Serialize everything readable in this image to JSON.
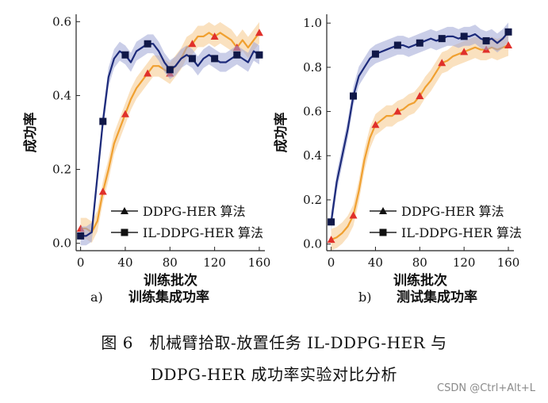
{
  "caption": {
    "line1": "图 6　机械臂拾取-放置任务 IL-DDPG-HER 与",
    "line2": "DDPG-HER 成功率实验对比分析"
  },
  "watermark": "CSDN @Ctrl+Alt+L",
  "colors": {
    "ddpg_her": "#f0a030",
    "ddpg_her_marker": "#e0302a",
    "il_ddpg_her": "#1c2a7a",
    "il_ddpg_her_marker": "#101848"
  },
  "chart_data": [
    {
      "type": "line",
      "panel_label": "a)",
      "subtitle": "训练集成功率",
      "xlabel": "训练批次",
      "ylabel": "成功率",
      "xlim": [
        -4,
        165
      ],
      "ylim": [
        -0.02,
        0.62
      ],
      "xticks": [
        0,
        40,
        80,
        120,
        160
      ],
      "yticks": [
        0.0,
        0.2,
        0.4,
        0.6
      ],
      "ytick_labels": [
        "0.0",
        "0.2",
        "0.4",
        "0.6"
      ],
      "legend_position": "bottom-right",
      "series": [
        {
          "name": "DDPG-HER 算法",
          "marker": "triangle",
          "x": [
            0,
            5,
            10,
            15,
            20,
            25,
            30,
            35,
            40,
            45,
            50,
            55,
            60,
            65,
            70,
            75,
            80,
            85,
            90,
            95,
            100,
            105,
            110,
            115,
            120,
            125,
            130,
            135,
            140,
            145,
            150,
            155,
            160
          ],
          "y": [
            0.04,
            0.04,
            0.03,
            0.06,
            0.14,
            0.2,
            0.27,
            0.31,
            0.35,
            0.39,
            0.42,
            0.44,
            0.46,
            0.48,
            0.48,
            0.47,
            0.46,
            0.48,
            0.5,
            0.53,
            0.54,
            0.56,
            0.56,
            0.57,
            0.56,
            0.57,
            0.56,
            0.55,
            0.53,
            0.55,
            0.53,
            0.55,
            0.57
          ],
          "marker_x": [
            0,
            20,
            40,
            60,
            80,
            100,
            120,
            140,
            160
          ],
          "marker_y": [
            0.04,
            0.14,
            0.35,
            0.46,
            0.46,
            0.54,
            0.56,
            0.53,
            0.57
          ]
        },
        {
          "name": "IL-DDPG-HER 算法",
          "marker": "square",
          "x": [
            0,
            5,
            10,
            15,
            20,
            25,
            30,
            35,
            40,
            45,
            50,
            55,
            60,
            65,
            70,
            75,
            80,
            85,
            90,
            95,
            100,
            105,
            110,
            115,
            120,
            125,
            130,
            135,
            140,
            145,
            150,
            155,
            160
          ],
          "y": [
            0.02,
            0.02,
            0.03,
            0.18,
            0.33,
            0.45,
            0.5,
            0.52,
            0.51,
            0.49,
            0.52,
            0.53,
            0.54,
            0.54,
            0.52,
            0.49,
            0.47,
            0.48,
            0.5,
            0.51,
            0.5,
            0.48,
            0.5,
            0.51,
            0.5,
            0.49,
            0.49,
            0.5,
            0.51,
            0.5,
            0.49,
            0.52,
            0.51
          ],
          "marker_x": [
            0,
            20,
            40,
            60,
            80,
            100,
            120,
            140,
            160
          ],
          "marker_y": [
            0.02,
            0.33,
            0.51,
            0.54,
            0.47,
            0.5,
            0.5,
            0.51,
            0.51
          ]
        }
      ]
    },
    {
      "type": "line",
      "panel_label": "b)",
      "subtitle": "测试集成功率",
      "xlabel": "训练批次",
      "ylabel": "成功率",
      "xlim": [
        -4,
        165
      ],
      "ylim": [
        -0.03,
        1.04
      ],
      "xticks": [
        0,
        40,
        80,
        120,
        160
      ],
      "yticks": [
        0.0,
        0.2,
        0.4,
        0.6,
        0.8,
        1.0
      ],
      "ytick_labels": [
        "0.0",
        "0.2",
        "0.4",
        "0.6",
        "0.8",
        "1.0"
      ],
      "legend_position": "bottom-right",
      "series": [
        {
          "name": "DDPG-HER 算法",
          "marker": "triangle",
          "x": [
            0,
            5,
            10,
            15,
            20,
            25,
            30,
            35,
            40,
            45,
            50,
            55,
            60,
            65,
            70,
            75,
            80,
            85,
            90,
            95,
            100,
            105,
            110,
            115,
            120,
            125,
            130,
            135,
            140,
            145,
            150,
            155,
            160
          ],
          "y": [
            0.02,
            0.03,
            0.05,
            0.08,
            0.13,
            0.24,
            0.38,
            0.48,
            0.54,
            0.56,
            0.58,
            0.58,
            0.6,
            0.61,
            0.63,
            0.64,
            0.67,
            0.71,
            0.74,
            0.78,
            0.82,
            0.83,
            0.85,
            0.86,
            0.87,
            0.88,
            0.89,
            0.88,
            0.88,
            0.89,
            0.88,
            0.89,
            0.9
          ],
          "marker_x": [
            0,
            20,
            40,
            60,
            80,
            100,
            120,
            140,
            160
          ],
          "marker_y": [
            0.02,
            0.13,
            0.54,
            0.6,
            0.67,
            0.82,
            0.87,
            0.88,
            0.9
          ]
        },
        {
          "name": "IL-DDPG-HER 算法",
          "marker": "square",
          "x": [
            0,
            5,
            10,
            15,
            20,
            25,
            30,
            35,
            40,
            45,
            50,
            55,
            60,
            65,
            70,
            75,
            80,
            85,
            90,
            95,
            100,
            105,
            110,
            115,
            120,
            125,
            130,
            135,
            140,
            145,
            150,
            155,
            160
          ],
          "y": [
            0.1,
            0.28,
            0.4,
            0.52,
            0.67,
            0.76,
            0.8,
            0.84,
            0.86,
            0.87,
            0.88,
            0.89,
            0.9,
            0.9,
            0.89,
            0.9,
            0.91,
            0.92,
            0.93,
            0.92,
            0.93,
            0.94,
            0.94,
            0.93,
            0.94,
            0.94,
            0.95,
            0.93,
            0.92,
            0.93,
            0.91,
            0.93,
            0.96
          ],
          "marker_x": [
            0,
            20,
            40,
            60,
            80,
            100,
            120,
            140,
            160
          ],
          "marker_y": [
            0.1,
            0.67,
            0.86,
            0.9,
            0.91,
            0.93,
            0.94,
            0.92,
            0.96
          ]
        }
      ]
    }
  ]
}
